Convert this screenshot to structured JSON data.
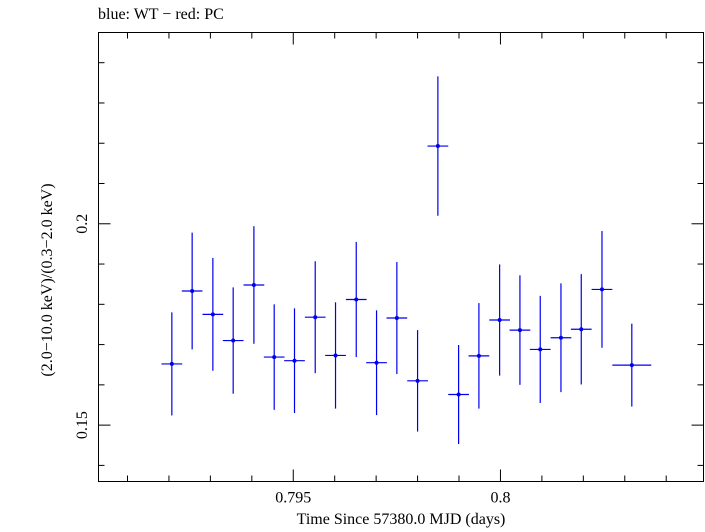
{
  "chart_data": {
    "type": "scatter",
    "title": "blue: WT − red: PC",
    "xlabel": "Time Since 57380.0 MJD (days)",
    "ylabel": "(2.0−10.0 keV)/(0.3−2.0 keV)",
    "xlim": [
      0.7903,
      0.8049
    ],
    "ylim": [
      0.136,
      0.2475
    ],
    "x_ticks": [
      {
        "value": 0.795,
        "label": "0.795"
      },
      {
        "value": 0.8,
        "label": "0.8"
      }
    ],
    "y_ticks": [
      {
        "value": 0.15,
        "label": "0.15"
      },
      {
        "value": 0.2,
        "label": "0.2"
      }
    ],
    "grid": false,
    "colors": {
      "series": "#0000ee",
      "axes": "#000000"
    },
    "series": [
      {
        "name": "WT",
        "color": "#0000ee",
        "points": [
          {
            "x": 0.79207,
            "xerr": 0.00025,
            "y": 0.1652,
            "yerr": 0.0128
          },
          {
            "x": 0.79256,
            "xerr": 0.00025,
            "y": 0.1833,
            "yerr": 0.0145
          },
          {
            "x": 0.79306,
            "xerr": 0.00025,
            "y": 0.1775,
            "yerr": 0.014
          },
          {
            "x": 0.79355,
            "xerr": 0.00025,
            "y": 0.171,
            "yerr": 0.0132
          },
          {
            "x": 0.79405,
            "xerr": 0.00025,
            "y": 0.1848,
            "yerr": 0.0146
          },
          {
            "x": 0.79454,
            "xerr": 0.00025,
            "y": 0.1669,
            "yerr": 0.0131
          },
          {
            "x": 0.79503,
            "xerr": 0.00025,
            "y": 0.166,
            "yerr": 0.013
          },
          {
            "x": 0.79553,
            "xerr": 0.00025,
            "y": 0.1768,
            "yerr": 0.0139
          },
          {
            "x": 0.79602,
            "xerr": 0.00025,
            "y": 0.1673,
            "yerr": 0.0132
          },
          {
            "x": 0.79652,
            "xerr": 0.00025,
            "y": 0.1812,
            "yerr": 0.0143
          },
          {
            "x": 0.79701,
            "xerr": 0.00025,
            "y": 0.1655,
            "yerr": 0.013
          },
          {
            "x": 0.7975,
            "xerr": 0.00025,
            "y": 0.1766,
            "yerr": 0.0139
          },
          {
            "x": 0.798,
            "xerr": 0.00025,
            "y": 0.161,
            "yerr": 0.0126
          },
          {
            "x": 0.79849,
            "xerr": 0.00025,
            "y": 0.2193,
            "yerr": 0.0173
          },
          {
            "x": 0.79899,
            "xerr": 0.00025,
            "y": 0.1576,
            "yerr": 0.0123
          },
          {
            "x": 0.79948,
            "xerr": 0.00025,
            "y": 0.1672,
            "yerr": 0.0131
          },
          {
            "x": 0.79998,
            "xerr": 0.00025,
            "y": 0.1761,
            "yerr": 0.0138
          },
          {
            "x": 0.80047,
            "xerr": 0.00025,
            "y": 0.1736,
            "yerr": 0.0136
          },
          {
            "x": 0.80096,
            "xerr": 0.00025,
            "y": 0.1688,
            "yerr": 0.0133
          },
          {
            "x": 0.80146,
            "xerr": 0.00025,
            "y": 0.1717,
            "yerr": 0.0135
          },
          {
            "x": 0.80195,
            "xerr": 0.00025,
            "y": 0.1738,
            "yerr": 0.0137
          },
          {
            "x": 0.80245,
            "xerr": 0.00025,
            "y": 0.1837,
            "yerr": 0.0145
          },
          {
            "x": 0.80317,
            "xerr": 0.00047,
            "y": 0.1649,
            "yerr": 0.0103
          }
        ]
      }
    ]
  }
}
